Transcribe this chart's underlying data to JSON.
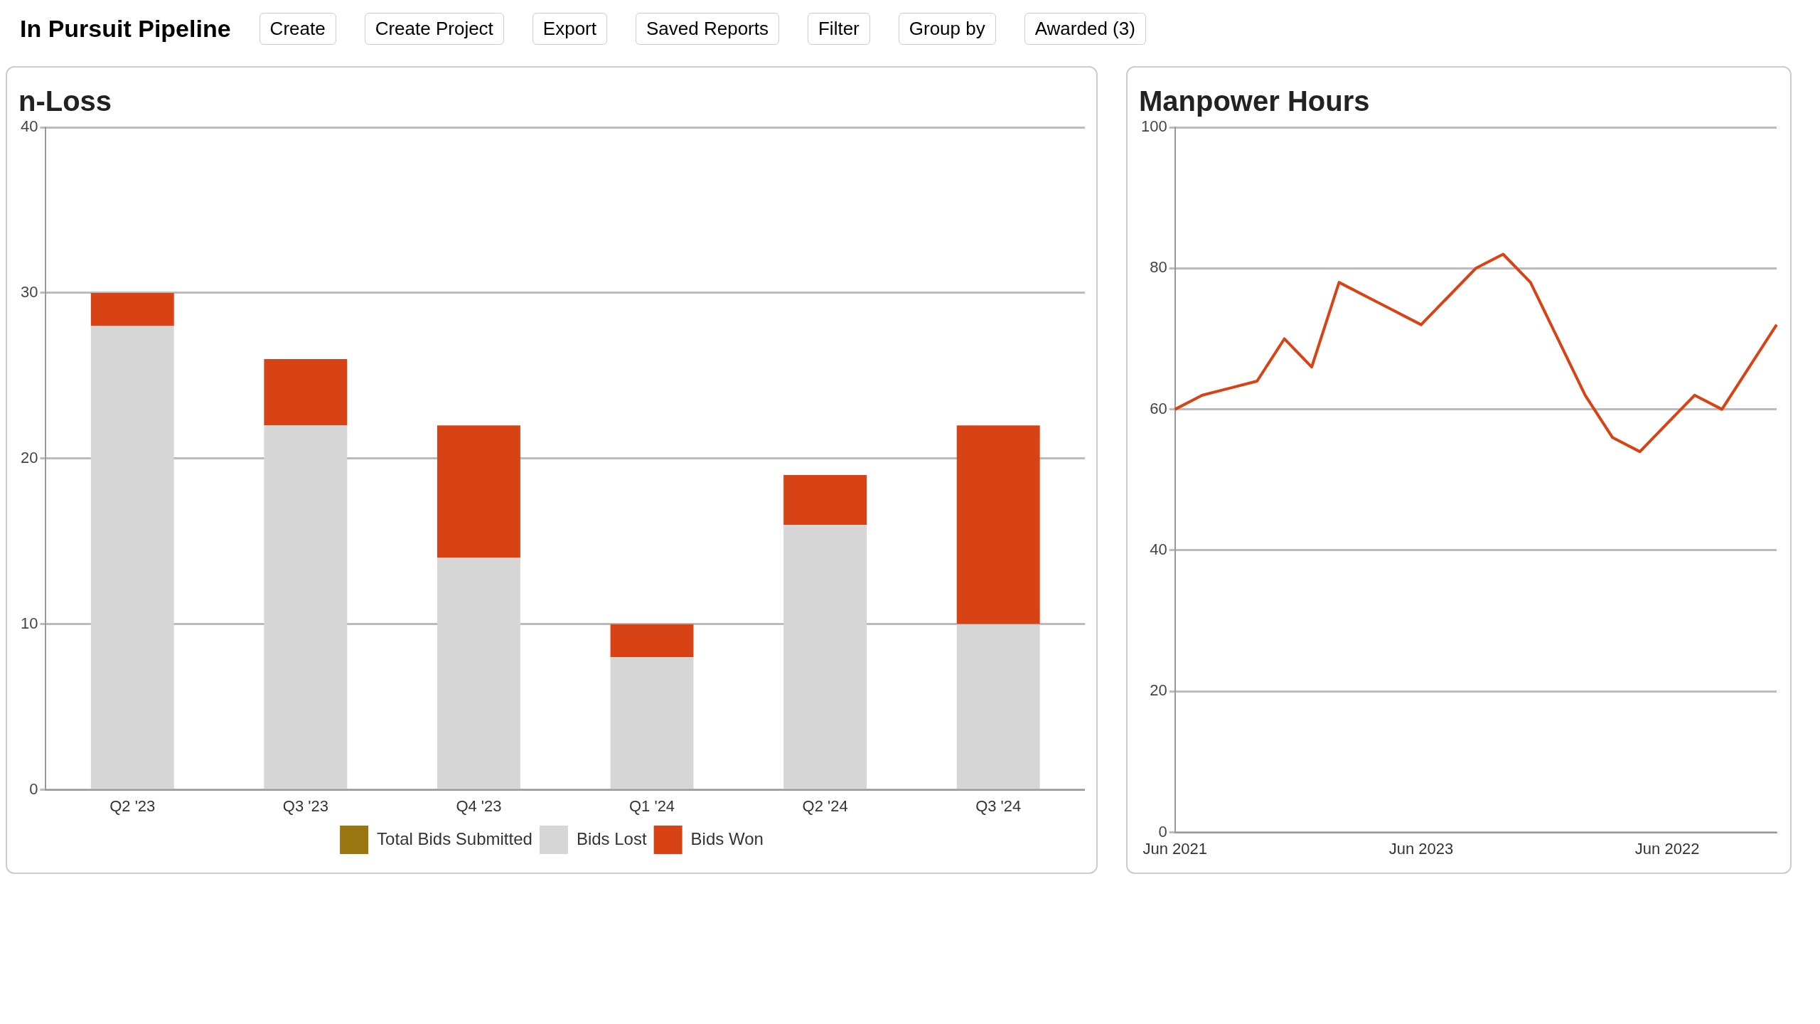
{
  "chart_data": [
    {
      "type": "other",
      "title": "In Pursuit Pipeline",
      "annotations": [
        "Create",
        "Create Project",
        "Export",
        "Saved Reports",
        "Filter",
        "Group by",
        "Awarded (3)"
      ]
    },
    {
      "type": "bar",
      "title": "n-Loss",
      "stacked": true,
      "categories": [
        "Q2 '23",
        "Q3 '23",
        "Q4 '23",
        "Q1 '24",
        "Q2 '24",
        "Q3 '24"
      ],
      "series": [
        {
          "name": "Total Bids Submitted",
          "color": "#9a7510",
          "values": [
            null,
            null,
            null,
            null,
            null,
            null
          ]
        },
        {
          "name": "Bids Lost",
          "color": "#d6d6d6",
          "values": [
            28,
            22,
            14,
            8,
            16,
            10
          ]
        },
        {
          "name": "Bids Won",
          "color": "#d84315",
          "values": [
            2,
            4,
            8,
            2,
            3,
            12
          ]
        }
      ],
      "ylim": [
        0,
        40
      ],
      "yticks": [
        0,
        10,
        20,
        30,
        40
      ],
      "grid": "y",
      "legend": "bottom"
    },
    {
      "type": "line",
      "title": "Manpower Hours",
      "categories": [
        "Jun 2021",
        null,
        null,
        null,
        null,
        null,
        null,
        null,
        null,
        "Jun 2023",
        null,
        null,
        null,
        null,
        null,
        null,
        null,
        null,
        "Jun 2022",
        null,
        null,
        null,
        null
      ],
      "series": [
        {
          "color": "#d84315",
          "values": [
            60,
            62,
            63,
            64,
            70,
            66,
            78,
            76,
            74,
            72,
            76,
            80,
            82,
            78,
            70,
            62,
            56,
            54,
            58,
            62,
            60,
            66,
            72
          ]
        }
      ],
      "ylim": [
        0,
        100
      ],
      "yticks": [
        0,
        20,
        40,
        60,
        80,
        100
      ],
      "grid": "y",
      "legend": false,
      "marker": "none"
    }
  ]
}
